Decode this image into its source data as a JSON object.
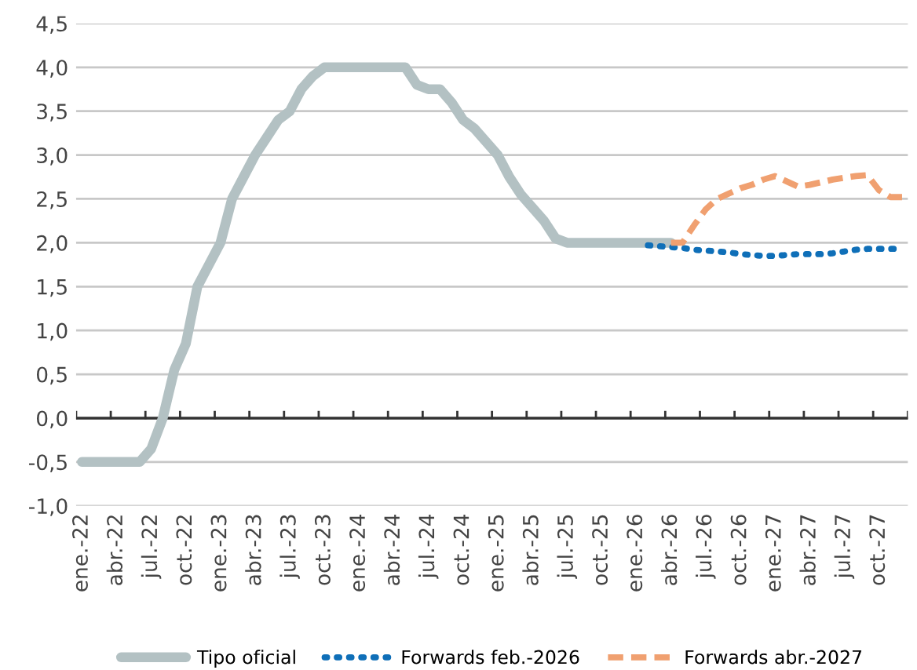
{
  "chart_data": {
    "type": "line",
    "categories": [
      "ene.-22",
      null,
      null,
      "abr.-22",
      null,
      null,
      "jul.-22",
      null,
      null,
      "oct.-22",
      null,
      null,
      "ene.-23",
      null,
      null,
      "abr.-23",
      null,
      null,
      "jul.-23",
      null,
      null,
      "oct.-23",
      null,
      null,
      "ene.-24",
      null,
      null,
      "abr.-24",
      null,
      null,
      "jul.-24",
      null,
      null,
      "oct.-24",
      null,
      null,
      "ene.-25",
      null,
      null,
      "abr.-25",
      null,
      null,
      "jul.-25",
      null,
      null,
      "oct.-25",
      null,
      null,
      "ene.-26",
      null,
      null,
      "abr.-26",
      null,
      null,
      "jul.-26",
      null,
      null,
      "oct.-26",
      null,
      null,
      "ene.-27",
      null,
      null,
      "abr.-27",
      null,
      null,
      "jul.-27",
      null,
      null,
      "oct.-27",
      null,
      null
    ],
    "series": [
      {
        "name": "Tipo oficial",
        "color": "#b3c1c3",
        "line_style": "solid",
        "values": [
          -0.5,
          -0.5,
          -0.5,
          -0.5,
          -0.5,
          -0.5,
          -0.35,
          0.0,
          0.55,
          0.85,
          1.5,
          1.75,
          2.0,
          2.5,
          2.75,
          3.0,
          3.2,
          3.4,
          3.5,
          3.75,
          3.9,
          4.0,
          4.0,
          4.0,
          4.0,
          4.0,
          4.0,
          4.0,
          4.0,
          3.8,
          3.75,
          3.75,
          3.6,
          3.4,
          3.3,
          3.15,
          3.0,
          2.75,
          2.55,
          2.4,
          2.25,
          2.05,
          2.0,
          2.0,
          2.0,
          2.0,
          2.0,
          2.0,
          2.0,
          2.0,
          2.0,
          2.0,
          null,
          null,
          null,
          null,
          null,
          null,
          null,
          null,
          null,
          null,
          null,
          null,
          null,
          null,
          null,
          null,
          null,
          null,
          null,
          null
        ]
      },
      {
        "name": "Forwards feb.-2026",
        "color": "#0f6fb8",
        "line_style": "dotted",
        "values": [
          null,
          null,
          null,
          null,
          null,
          null,
          null,
          null,
          null,
          null,
          null,
          null,
          null,
          null,
          null,
          null,
          null,
          null,
          null,
          null,
          null,
          null,
          null,
          null,
          null,
          null,
          null,
          null,
          null,
          null,
          null,
          null,
          null,
          null,
          null,
          null,
          null,
          null,
          null,
          null,
          null,
          null,
          null,
          null,
          null,
          null,
          null,
          null,
          null,
          1.97,
          1.96,
          1.95,
          1.94,
          1.92,
          1.91,
          1.9,
          1.89,
          1.87,
          1.86,
          1.85,
          1.85,
          1.86,
          1.87,
          1.87,
          1.87,
          1.88,
          1.9,
          1.92,
          1.93,
          1.93,
          1.93,
          1.93
        ]
      },
      {
        "name": "Forwards abr.-2027",
        "color": "#f0a070",
        "line_style": "dashed",
        "values": [
          null,
          null,
          null,
          null,
          null,
          null,
          null,
          null,
          null,
          null,
          null,
          null,
          null,
          null,
          null,
          null,
          null,
          null,
          null,
          null,
          null,
          null,
          null,
          null,
          null,
          null,
          null,
          null,
          null,
          null,
          null,
          null,
          null,
          null,
          null,
          null,
          null,
          null,
          null,
          null,
          null,
          null,
          null,
          null,
          null,
          null,
          null,
          null,
          null,
          null,
          null,
          2.0,
          2.0,
          2.2,
          2.38,
          2.5,
          2.56,
          2.62,
          2.66,
          2.72,
          2.76,
          2.7,
          2.64,
          2.66,
          2.69,
          2.72,
          2.74,
          2.76,
          2.77,
          2.6,
          2.52,
          2.52
        ]
      }
    ],
    "ylim": [
      -1.0,
      4.5
    ],
    "yticks": [
      {
        "value": -1.0,
        "label": "-1,0"
      },
      {
        "value": -0.5,
        "label": "-0,5"
      },
      {
        "value": 0.0,
        "label": "0,0"
      },
      {
        "value": 0.5,
        "label": "0,5"
      },
      {
        "value": 1.0,
        "label": "1,0"
      },
      {
        "value": 1.5,
        "label": "1,5"
      },
      {
        "value": 2.0,
        "label": "2,0"
      },
      {
        "value": 2.5,
        "label": "2,5"
      },
      {
        "value": 3.0,
        "label": "3,0"
      },
      {
        "value": 3.5,
        "label": "3,5"
      },
      {
        "value": 4.0,
        "label": "4,0"
      },
      {
        "value": 4.5,
        "label": "4,5"
      }
    ],
    "grid": "y",
    "legend": "bottom",
    "marker": "none"
  }
}
